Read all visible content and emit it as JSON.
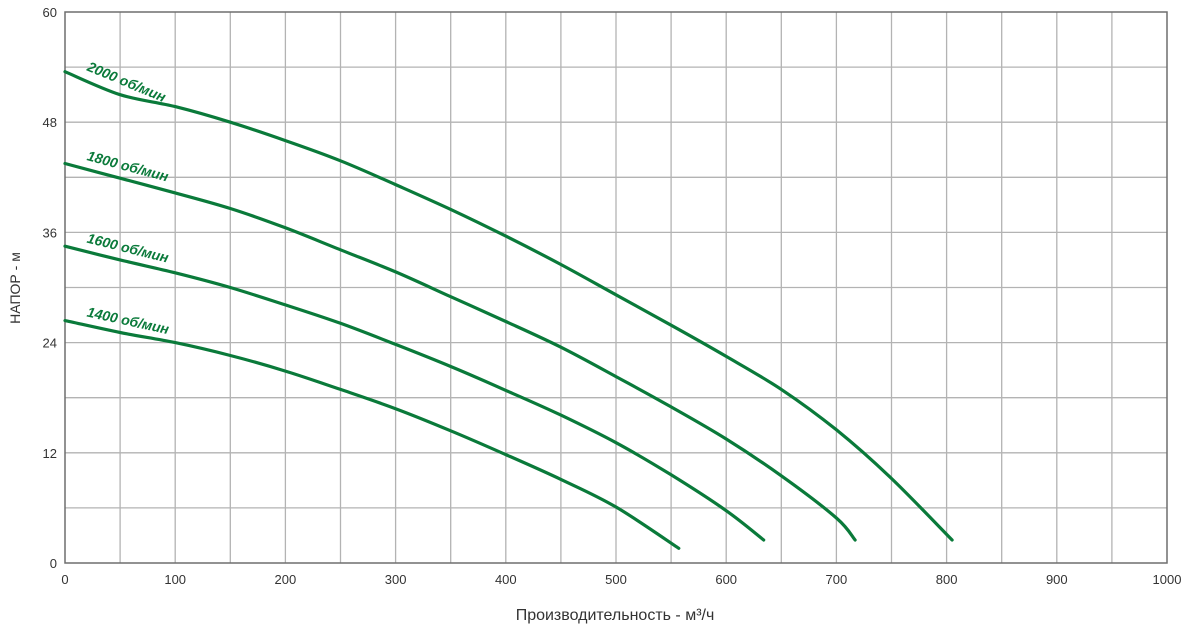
{
  "chart_data": {
    "type": "line",
    "title": "",
    "xlabel": "Производительность - м³/ч",
    "ylabel": "НАПОР - м",
    "xlim": [
      0,
      1000
    ],
    "ylim": [
      0,
      60
    ],
    "xticks": [
      "0",
      "100",
      "200",
      "300",
      "400",
      "500",
      "600",
      "700",
      "800",
      "900",
      "1000"
    ],
    "yticks": [
      "0",
      "12",
      "24",
      "36",
      "48",
      "60"
    ],
    "grid": true,
    "line_color": "#0a7a3a",
    "series": [
      {
        "name": "2000 об/мин",
        "x": [
          0,
          50,
          100,
          150,
          200,
          250,
          300,
          350,
          400,
          450,
          500,
          550,
          600,
          650,
          700,
          750,
          805
        ],
        "y": [
          53.5,
          51.0,
          49.7,
          48.0,
          46.0,
          43.8,
          41.2,
          38.5,
          35.6,
          32.5,
          29.2,
          25.9,
          22.5,
          18.9,
          14.5,
          9.2,
          2.5
        ]
      },
      {
        "name": "1800 об/мин",
        "x": [
          0,
          50,
          100,
          150,
          200,
          250,
          300,
          350,
          400,
          450,
          500,
          550,
          600,
          650,
          700,
          717
        ],
        "y": [
          43.5,
          41.9,
          40.3,
          38.6,
          36.5,
          34.1,
          31.7,
          29.0,
          26.3,
          23.5,
          20.3,
          17.0,
          13.5,
          9.5,
          4.9,
          2.5
        ]
      },
      {
        "name": "1600 об/мин",
        "x": [
          0,
          50,
          100,
          150,
          200,
          250,
          300,
          350,
          400,
          450,
          500,
          550,
          600,
          634
        ],
        "y": [
          34.5,
          33.0,
          31.6,
          30.0,
          28.1,
          26.1,
          23.8,
          21.4,
          18.8,
          16.1,
          13.1,
          9.6,
          5.7,
          2.5
        ]
      },
      {
        "name": "1400 об/мин",
        "x": [
          0,
          50,
          100,
          150,
          200,
          250,
          300,
          350,
          400,
          450,
          500,
          557
        ],
        "y": [
          26.4,
          25.1,
          24.0,
          22.6,
          20.9,
          18.9,
          16.8,
          14.4,
          11.8,
          9.1,
          6.1,
          1.6
        ]
      }
    ]
  }
}
